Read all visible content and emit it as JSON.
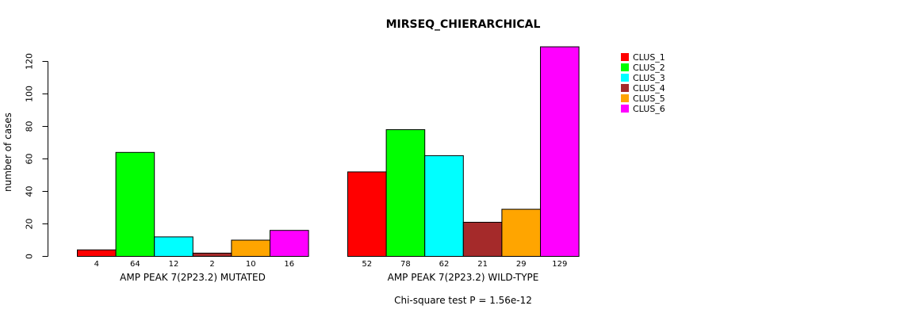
{
  "chart_data": {
    "type": "bar",
    "title": "MIRSEQ_CHIERARCHICAL",
    "ylabel": "number of cases",
    "ylim": [
      0,
      120
    ],
    "yticks": [
      0,
      20,
      40,
      60,
      80,
      100,
      120
    ],
    "groups": [
      "AMP PEAK  7(2P23.2) MUTATED",
      "AMP PEAK  7(2P23.2) WILD-TYPE"
    ],
    "series": [
      {
        "name": "CLUS_1",
        "color": "#ff0000",
        "values": [
          4,
          52
        ]
      },
      {
        "name": "CLUS_2",
        "color": "#00ff00",
        "values": [
          64,
          78
        ]
      },
      {
        "name": "CLUS_3",
        "color": "#00ffff",
        "values": [
          12,
          62
        ]
      },
      {
        "name": "CLUS_4",
        "color": "#a52a2a",
        "values": [
          2,
          21
        ]
      },
      {
        "name": "CLUS_5",
        "color": "#ffa500",
        "values": [
          10,
          29
        ]
      },
      {
        "name": "CLUS_6",
        "color": "#ff00ff",
        "values": [
          16,
          129
        ]
      }
    ],
    "legend_position": "top-right",
    "footer": "Chi-square test P = 1.56e-12"
  }
}
